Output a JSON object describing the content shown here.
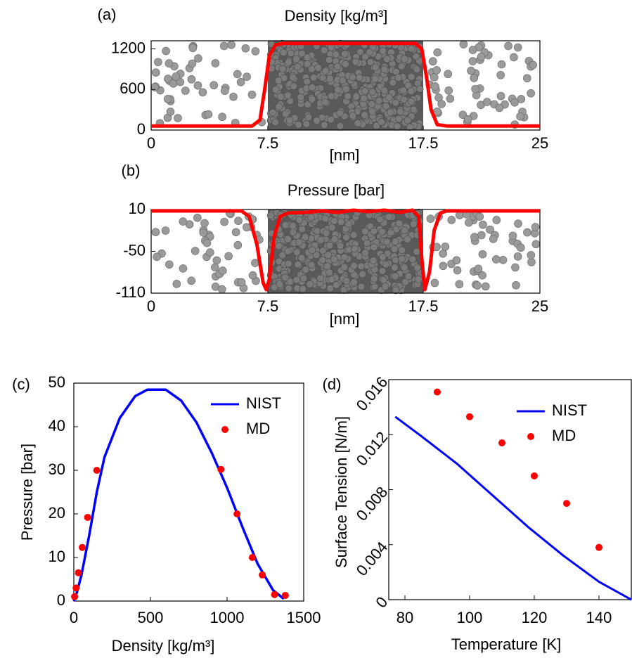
{
  "chart_data": [
    {
      "type": "line",
      "panel_label": "(a)",
      "title": "Density [kg/m³]",
      "x_label": "[nm]",
      "x": [
        0,
        6.5,
        7,
        7.3,
        7.6,
        8,
        8.5,
        17,
        17.4,
        17.7,
        18,
        18.4,
        19,
        25
      ],
      "values": [
        60,
        60,
        150,
        600,
        1100,
        1260,
        1280,
        1280,
        1200,
        800,
        300,
        80,
        60,
        60
      ],
      "color": "#ff0000",
      "xlim": [
        0,
        25
      ],
      "xticks": [
        0,
        7.5,
        17.5,
        25
      ],
      "ylim": [
        0,
        1320
      ],
      "yticks": [
        0,
        600,
        1200
      ]
    },
    {
      "type": "line",
      "panel_label": "(b)",
      "title": "Pressure [bar]",
      "x_label": "[nm]",
      "x": [
        0,
        5.8,
        6.3,
        6.8,
        7.2,
        7.4,
        7.6,
        7.9,
        8.3,
        8.8,
        10,
        11,
        12,
        13,
        14,
        15,
        16,
        16.8,
        17.2,
        17.4,
        17.6,
        17.9,
        18.2,
        18.6,
        19,
        25
      ],
      "values": [
        8,
        8,
        0,
        -40,
        -95,
        -105,
        -90,
        -30,
        0,
        5,
        6,
        8,
        6,
        9,
        7,
        9,
        6,
        9,
        0,
        -60,
        -105,
        -80,
        -20,
        5,
        8,
        8
      ],
      "color": "#ff0000",
      "xlim": [
        0,
        25
      ],
      "xticks": [
        0,
        7.5,
        17.5,
        25
      ],
      "ylim": [
        -110,
        10
      ],
      "yticks": [
        10,
        -50,
        -110
      ]
    },
    {
      "type": "line",
      "panel_label": "(c)",
      "x_label": "Density [kg/m³]",
      "y_label": "Pressure [bar]",
      "xlim": [
        0,
        1500
      ],
      "xticks": [
        0,
        500,
        1000,
        1500
      ],
      "ylim": [
        0,
        50
      ],
      "yticks": [
        0,
        10,
        20,
        30,
        40,
        50
      ],
      "legend": "upper right",
      "series": [
        {
          "name": "NIST",
          "style": "line",
          "color": "#0000ff",
          "x": [
            0,
            20,
            50,
            100,
            150,
            200,
            300,
            400,
            480,
            600,
            700,
            800,
            900,
            1000,
            1100,
            1200,
            1300,
            1370
          ],
          "values": [
            0,
            2,
            6,
            15,
            25,
            33,
            42,
            47,
            48.5,
            48.5,
            46,
            41,
            34,
            26,
            17,
            8.5,
            2.5,
            0.5
          ]
        },
        {
          "name": "MD",
          "style": "marker",
          "color": "#ff0000",
          "x": [
            5,
            15,
            30,
            55,
            90,
            150,
            960,
            1065,
            1165,
            1230,
            1310,
            1380
          ],
          "values": [
            1,
            3,
            6.5,
            12.3,
            19.2,
            30,
            30.2,
            20,
            10,
            6,
            1.5,
            1.3
          ]
        }
      ]
    },
    {
      "type": "line",
      "panel_label": "(d)",
      "x_label": "Temperature [K]",
      "y_label": "Surface Tension [N/m]",
      "xlim": [
        75,
        150
      ],
      "xticks": [
        80,
        100,
        120,
        140
      ],
      "ylim": [
        0,
        0.016
      ],
      "yticks": [
        0,
        0.004,
        0.008,
        0.012,
        0.016
      ],
      "legend": "upper right",
      "series": [
        {
          "name": "NIST",
          "style": "line",
          "color": "#0000ff",
          "x": [
            77,
            85,
            96,
            107,
            118,
            129,
            140,
            150
          ],
          "values": [
            0.0133,
            0.0119,
            0.0099,
            0.0076,
            0.0053,
            0.0032,
            0.0013,
            0
          ]
        },
        {
          "name": "MD",
          "style": "marker",
          "color": "#ff0000",
          "x": [
            90,
            100,
            110,
            120,
            130,
            140
          ],
          "values": [
            0.0151,
            0.0133,
            0.0114,
            0.009,
            0.007,
            0.0038
          ]
        }
      ]
    }
  ]
}
